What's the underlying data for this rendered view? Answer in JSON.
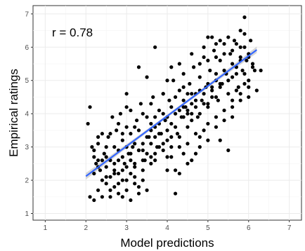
{
  "chart_data": {
    "type": "scatter",
    "xlabel": "Model predictions",
    "ylabel": "Empirical ratings",
    "annotation": "r = 0.78",
    "xlim": [
      0.7,
      7.3
    ],
    "ylim": [
      0.8,
      7.25
    ],
    "x_ticks": [
      "1",
      "2",
      "3",
      "4",
      "5",
      "6",
      "7"
    ],
    "y_ticks": [
      "1",
      "2",
      "3",
      "4",
      "5",
      "6",
      "7"
    ],
    "grid": true,
    "legend": "none",
    "fit_line": {
      "x": [
        2.0,
        6.2
      ],
      "y": [
        2.12,
        5.92
      ],
      "color": "#3366ff",
      "band_color": "#bdbdbd"
    },
    "point_color": "#000000",
    "points": [
      [
        2.05,
        3.7
      ],
      [
        2.1,
        4.2
      ],
      [
        2.15,
        3.0
      ],
      [
        2.2,
        2.7
      ],
      [
        2.25,
        2.5
      ],
      [
        2.3,
        3.1
      ],
      [
        2.35,
        2.3
      ],
      [
        2.4,
        3.4
      ],
      [
        2.45,
        2.8
      ],
      [
        2.5,
        2.1
      ],
      [
        2.55,
        3.3
      ],
      [
        2.6,
        2.6
      ],
      [
        2.65,
        3.9
      ],
      [
        2.7,
        2.2
      ],
      [
        2.75,
        3.5
      ],
      [
        2.8,
        2.9
      ],
      [
        2.85,
        4.0
      ],
      [
        2.9,
        3.2
      ],
      [
        2.95,
        2.5
      ],
      [
        3.0,
        3.6
      ],
      [
        3.05,
        2.8
      ],
      [
        3.1,
        4.1
      ],
      [
        3.15,
        3.0
      ],
      [
        3.2,
        2.4
      ],
      [
        3.25,
        3.8
      ],
      [
        3.3,
        2.9
      ],
      [
        3.35,
        4.3
      ],
      [
        3.4,
        3.1
      ],
      [
        3.45,
        2.6
      ],
      [
        3.5,
        3.9
      ],
      [
        3.55,
        3.3
      ],
      [
        3.6,
        2.7
      ],
      [
        3.65,
        4.5
      ],
      [
        3.7,
        3.6
      ],
      [
        3.75,
        3.0
      ],
      [
        3.8,
        4.1
      ],
      [
        3.85,
        3.4
      ],
      [
        3.9,
        4.6
      ],
      [
        3.95,
        3.8
      ],
      [
        4.0,
        3.2
      ],
      [
        4.05,
        4.4
      ],
      [
        4.1,
        3.7
      ],
      [
        4.15,
        5.0
      ],
      [
        4.2,
        4.0
      ],
      [
        4.25,
        3.4
      ],
      [
        4.3,
        4.7
      ],
      [
        4.35,
        3.9
      ],
      [
        4.4,
        5.2
      ],
      [
        4.45,
        4.2
      ],
      [
        4.5,
        3.6
      ],
      [
        4.55,
        4.9
      ],
      [
        4.6,
        4.3
      ],
      [
        4.65,
        5.4
      ],
      [
        4.7,
        4.6
      ],
      [
        4.75,
        3.9
      ],
      [
        4.8,
        5.1
      ],
      [
        4.85,
        4.4
      ],
      [
        4.9,
        5.7
      ],
      [
        4.95,
        4.8
      ],
      [
        5.0,
        4.2
      ],
      [
        5.05,
        5.3
      ],
      [
        5.1,
        4.7
      ],
      [
        5.15,
        5.9
      ],
      [
        5.2,
        5.0
      ],
      [
        5.25,
        4.4
      ],
      [
        5.3,
        5.6
      ],
      [
        5.35,
        4.9
      ],
      [
        5.4,
        6.1
      ],
      [
        5.45,
        5.2
      ],
      [
        5.5,
        4.6
      ],
      [
        5.55,
        5.8
      ],
      [
        5.6,
        5.1
      ],
      [
        5.65,
        6.2
      ],
      [
        5.7,
        5.4
      ],
      [
        5.75,
        4.8
      ],
      [
        5.8,
        6.0
      ],
      [
        5.85,
        5.3
      ],
      [
        5.9,
        6.4
      ],
      [
        5.95,
        5.6
      ],
      [
        6.0,
        5.0
      ],
      [
        6.05,
        6.2
      ],
      [
        6.1,
        5.5
      ],
      [
        6.15,
        5.3
      ],
      [
        6.2,
        4.7
      ],
      [
        6.3,
        5.3
      ],
      [
        5.9,
        6.9
      ],
      [
        5.8,
        6.5
      ],
      [
        5.7,
        4.7
      ],
      [
        5.6,
        3.9
      ],
      [
        5.5,
        2.9
      ],
      [
        2.1,
        1.5
      ],
      [
        2.2,
        1.4
      ],
      [
        2.3,
        1.7
      ],
      [
        2.4,
        1.5
      ],
      [
        2.5,
        1.9
      ],
      [
        2.6,
        1.5
      ],
      [
        2.7,
        1.8
      ],
      [
        2.8,
        1.6
      ],
      [
        2.9,
        1.5
      ],
      [
        3.0,
        1.7
      ],
      [
        3.1,
        1.4
      ],
      [
        3.2,
        1.9
      ],
      [
        3.3,
        1.6
      ],
      [
        3.4,
        2.0
      ],
      [
        3.5,
        1.7
      ],
      [
        2.9,
        2.0
      ],
      [
        3.2,
        2.1
      ],
      [
        3.4,
        2.3
      ],
      [
        3.6,
        2.5
      ],
      [
        3.7,
        2.8
      ],
      [
        2.2,
        2.9
      ],
      [
        2.3,
        3.3
      ],
      [
        2.4,
        2.6
      ],
      [
        2.5,
        3.0
      ],
      [
        2.6,
        3.4
      ],
      [
        2.7,
        3.0
      ],
      [
        2.8,
        2.6
      ],
      [
        2.9,
        3.4
      ],
      [
        3.0,
        3.0
      ],
      [
        3.1,
        3.4
      ],
      [
        3.2,
        3.1
      ],
      [
        3.3,
        3.5
      ],
      [
        3.4,
        2.9
      ],
      [
        3.5,
        3.3
      ],
      [
        3.6,
        3.7
      ],
      [
        3.7,
        3.3
      ],
      [
        3.8,
        3.7
      ],
      [
        3.9,
        3.1
      ],
      [
        4.0,
        3.5
      ],
      [
        4.1,
        3.0
      ],
      [
        3.0,
        4.6
      ],
      [
        3.3,
        5.4
      ],
      [
        3.5,
        5.1
      ],
      [
        3.7,
        6.0
      ],
      [
        3.9,
        4.6
      ],
      [
        2.8,
        3.7
      ],
      [
        3.0,
        4.2
      ],
      [
        3.2,
        3.6
      ],
      [
        3.4,
        4.0
      ],
      [
        3.6,
        4.3
      ],
      [
        4.0,
        2.3
      ],
      [
        4.1,
        2.7
      ],
      [
        4.2,
        2.3
      ],
      [
        4.3,
        3.0
      ],
      [
        4.4,
        2.8
      ],
      [
        4.5,
        3.1
      ],
      [
        4.6,
        2.6
      ],
      [
        4.7,
        3.4
      ],
      [
        4.8,
        3.0
      ],
      [
        4.9,
        3.5
      ],
      [
        4.2,
        1.6
      ],
      [
        4.6,
        3.8
      ],
      [
        4.8,
        3.3
      ],
      [
        5.0,
        3.7
      ],
      [
        5.2,
        3.9
      ],
      [
        5.4,
        4.1
      ],
      [
        5.6,
        4.4
      ],
      [
        5.8,
        4.6
      ],
      [
        6.0,
        4.8
      ],
      [
        5.3,
        3.2
      ],
      [
        4.0,
        5.0
      ],
      [
        4.1,
        5.4
      ],
      [
        4.3,
        5.5
      ],
      [
        4.4,
        4.8
      ],
      [
        4.6,
        5.8
      ],
      [
        4.8,
        5.5
      ],
      [
        4.9,
        6.0
      ],
      [
        5.0,
        5.6
      ],
      [
        5.1,
        6.3
      ],
      [
        5.2,
        5.7
      ],
      [
        5.3,
        6.2
      ],
      [
        5.4,
        5.8
      ],
      [
        5.5,
        6.3
      ],
      [
        5.6,
        5.9
      ],
      [
        5.7,
        6.1
      ],
      [
        5.8,
        5.7
      ],
      [
        5.9,
        6.0
      ],
      [
        6.0,
        5.8
      ],
      [
        5.0,
        6.3
      ],
      [
        5.2,
        6.1
      ],
      [
        2.2,
        2.2
      ],
      [
        2.3,
        2.6
      ],
      [
        2.4,
        2.0
      ],
      [
        2.5,
        2.4
      ],
      [
        2.6,
        2.1
      ],
      [
        2.7,
        2.5
      ],
      [
        2.8,
        2.2
      ],
      [
        2.9,
        2.7
      ],
      [
        3.0,
        2.4
      ],
      [
        3.1,
        2.8
      ],
      [
        3.2,
        2.5
      ],
      [
        3.3,
        2.9
      ],
      [
        3.4,
        2.6
      ],
      [
        3.5,
        2.8
      ],
      [
        3.6,
        3.1
      ],
      [
        3.7,
        2.6
      ],
      [
        3.8,
        3.0
      ],
      [
        3.9,
        2.9
      ],
      [
        4.0,
        2.7
      ],
      [
        4.1,
        3.3
      ],
      [
        4.2,
        3.6
      ],
      [
        4.3,
        3.3
      ],
      [
        4.4,
        3.9
      ],
      [
        4.5,
        4.1
      ],
      [
        4.6,
        4.6
      ],
      [
        4.7,
        4.2
      ],
      [
        4.8,
        4.7
      ],
      [
        4.9,
        4.3
      ],
      [
        5.0,
        4.9
      ],
      [
        5.1,
        4.5
      ],
      [
        5.2,
        5.2
      ],
      [
        5.3,
        4.8
      ],
      [
        5.4,
        5.3
      ],
      [
        5.5,
        5.0
      ],
      [
        5.6,
        5.5
      ],
      [
        5.7,
        5.2
      ],
      [
        5.8,
        5.6
      ],
      [
        5.9,
        5.2
      ],
      [
        6.0,
        5.7
      ],
      [
        6.1,
        5.4
      ],
      [
        4.4,
        4.2
      ],
      [
        4.5,
        4.6
      ],
      [
        4.6,
        4.0
      ],
      [
        4.7,
        4.4
      ],
      [
        4.8,
        4.0
      ],
      [
        4.9,
        4.6
      ],
      [
        5.0,
        4.3
      ],
      [
        5.1,
        4.8
      ],
      [
        5.2,
        4.5
      ],
      [
        5.3,
        4.9
      ],
      [
        4.2,
        4.5
      ],
      [
        4.3,
        4.1
      ],
      [
        4.4,
        4.4
      ],
      [
        4.5,
        4.0
      ],
      [
        4.1,
        4.2
      ],
      [
        4.0,
        3.9
      ],
      [
        3.9,
        4.0
      ],
      [
        3.8,
        3.4
      ],
      [
        3.7,
        3.9
      ],
      [
        3.6,
        3.5
      ],
      [
        2.6,
        1.7
      ],
      [
        2.8,
        1.9
      ],
      [
        3.0,
        2.0
      ],
      [
        3.1,
        2.2
      ],
      [
        3.3,
        1.8
      ],
      [
        2.3,
        2.4
      ],
      [
        2.5,
        2.7
      ],
      [
        2.7,
        2.3
      ],
      [
        2.9,
        2.3
      ],
      [
        3.1,
        2.6
      ],
      [
        4.3,
        2.2
      ],
      [
        4.5,
        2.5
      ],
      [
        4.7,
        2.8
      ],
      [
        5.0,
        3.2
      ],
      [
        5.2,
        3.6
      ],
      [
        5.4,
        3.8
      ],
      [
        5.6,
        4.2
      ],
      [
        5.8,
        4.4
      ],
      [
        6.0,
        4.5
      ],
      [
        5.9,
        4.9
      ]
    ]
  }
}
